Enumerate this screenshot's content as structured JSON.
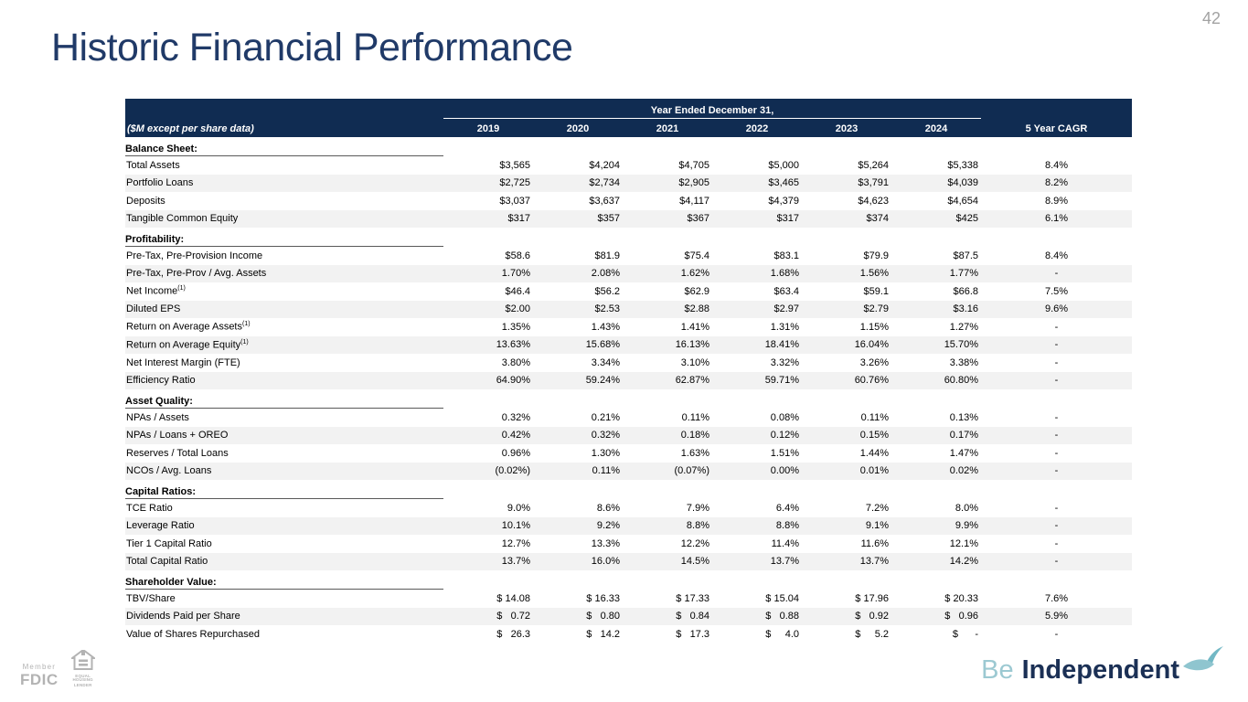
{
  "page": {
    "number": "42",
    "title": "Historic Financial Performance"
  },
  "table": {
    "span_header": "Year Ended December 31,",
    "col0_header": "($M except per share data)",
    "year_headers": [
      "2019",
      "2020",
      "2021",
      "2022",
      "2023",
      "2024"
    ],
    "cagr_header": "5 Year CAGR",
    "sections": [
      {
        "title": "Balance Sheet:",
        "rows": [
          {
            "label": "Total Assets",
            "values": [
              "$3,565",
              "$4,204",
              "$4,705",
              "$5,000",
              "$5,264",
              "$5,338",
              "8.4%"
            ]
          },
          {
            "label": "Portfolio Loans",
            "values": [
              "$2,725",
              "$2,734",
              "$2,905",
              "$3,465",
              "$3,791",
              "$4,039",
              "8.2%"
            ]
          },
          {
            "label": "Deposits",
            "values": [
              "$3,037",
              "$3,637",
              "$4,117",
              "$4,379",
              "$4,623",
              "$4,654",
              "8.9%"
            ]
          },
          {
            "label": "Tangible Common Equity",
            "values": [
              "$317",
              "$357",
              "$367",
              "$317",
              "$374",
              "$425",
              "6.1%"
            ]
          }
        ]
      },
      {
        "title": "Profitability:",
        "rows": [
          {
            "label": "Pre-Tax, Pre-Provision Income",
            "values": [
              "$58.6",
              "$81.9",
              "$75.4",
              "$83.1",
              "$79.9",
              "$87.5",
              "8.4%"
            ]
          },
          {
            "label": "Pre-Tax, Pre-Prov / Avg. Assets",
            "values": [
              "1.70%",
              "2.08%",
              "1.62%",
              "1.68%",
              "1.56%",
              "1.77%",
              "-"
            ]
          },
          {
            "label": "Net Income",
            "sup": "(1)",
            "values": [
              "$46.4",
              "$56.2",
              "$62.9",
              "$63.4",
              "$59.1",
              "$66.8",
              "7.5%"
            ]
          },
          {
            "label": "Diluted EPS",
            "values": [
              "$2.00",
              "$2.53",
              "$2.88",
              "$2.97",
              "$2.79",
              "$3.16",
              "9.6%"
            ]
          },
          {
            "label": "Return on Average Assets",
            "sup": "(1)",
            "values": [
              "1.35%",
              "1.43%",
              "1.41%",
              "1.31%",
              "1.15%",
              "1.27%",
              "-"
            ]
          },
          {
            "label": "Return on Average Equity",
            "sup": "(1)",
            "values": [
              "13.63%",
              "15.68%",
              "16.13%",
              "18.41%",
              "16.04%",
              "15.70%",
              "-"
            ]
          },
          {
            "label": "Net Interest Margin (FTE)",
            "values": [
              "3.80%",
              "3.34%",
              "3.10%",
              "3.32%",
              "3.26%",
              "3.38%",
              "-"
            ]
          },
          {
            "label": "Efficiency Ratio",
            "values": [
              "64.90%",
              "59.24%",
              "62.87%",
              "59.71%",
              "60.76%",
              "60.80%",
              "-"
            ]
          }
        ]
      },
      {
        "title": "Asset Quality:",
        "rows": [
          {
            "label": "NPAs / Assets",
            "values": [
              "0.32%",
              "0.21%",
              "0.11%",
              "0.08%",
              "0.11%",
              "0.13%",
              "-"
            ]
          },
          {
            "label": "NPAs / Loans + OREO",
            "values": [
              "0.42%",
              "0.32%",
              "0.18%",
              "0.12%",
              "0.15%",
              "0.17%",
              "-"
            ]
          },
          {
            "label": "Reserves / Total Loans",
            "values": [
              "0.96%",
              "1.30%",
              "1.63%",
              "1.51%",
              "1.44%",
              "1.47%",
              "-"
            ]
          },
          {
            "label": "NCOs / Avg. Loans",
            "values": [
              "(0.02%)",
              "0.11%",
              "(0.07%)",
              "0.00%",
              "0.01%",
              "0.02%",
              "-"
            ]
          }
        ]
      },
      {
        "title": "Capital Ratios:",
        "rows": [
          {
            "label": "TCE Ratio",
            "values": [
              "9.0%",
              "8.6%",
              "7.9%",
              "6.4%",
              "7.2%",
              "8.0%",
              "-"
            ]
          },
          {
            "label": "Leverage Ratio",
            "values": [
              "10.1%",
              "9.2%",
              "8.8%",
              "8.8%",
              "9.1%",
              "9.9%",
              "-"
            ]
          },
          {
            "label": "Tier 1 Capital Ratio",
            "values": [
              "12.7%",
              "13.3%",
              "12.2%",
              "11.4%",
              "11.6%",
              "12.1%",
              "-"
            ]
          },
          {
            "label": "Total Capital Ratio",
            "values": [
              "13.7%",
              "16.0%",
              "14.5%",
              "13.7%",
              "13.7%",
              "14.2%",
              "-"
            ]
          }
        ]
      },
      {
        "title": "Shareholder Value:",
        "rows": [
          {
            "label": "TBV/Share",
            "values": [
              "$ 14.08",
              "$ 16.33",
              "$ 17.33",
              "$ 15.04",
              "$ 17.96",
              "$ 20.33",
              "7.6%"
            ]
          },
          {
            "label": "Dividends Paid per Share",
            "values": [
              "$   0.72",
              "$   0.80",
              "$   0.84",
              "$   0.88",
              "$   0.92",
              "$   0.96",
              "5.9%"
            ]
          },
          {
            "label": "Value of Shares Repurchased",
            "values": [
              "$   26.3",
              "$   14.2",
              "$   17.3",
              "$     4.0",
              "$     5.2",
              "$      -",
              "-"
            ]
          }
        ]
      }
    ]
  },
  "footer": {
    "member_label": "Member",
    "fdic_label": "FDIC",
    "ehl_label_line1": "EQUAL HOUSING",
    "ehl_label_line2": "LENDER",
    "brand": {
      "be": "Be",
      "independent": "Independent"
    }
  },
  "colors": {
    "header_navy": "#102c52",
    "title_navy": "#203a68",
    "stripe_gray": "#f2f2f2",
    "section_underline": "#595959",
    "brand_teal": "#9cc9d2",
    "bird_teal": "#72b8c5",
    "brand_navy": "#1b3055",
    "footer_gray": "#b3b3b3",
    "page_number_gray": "#a3a3a3"
  }
}
